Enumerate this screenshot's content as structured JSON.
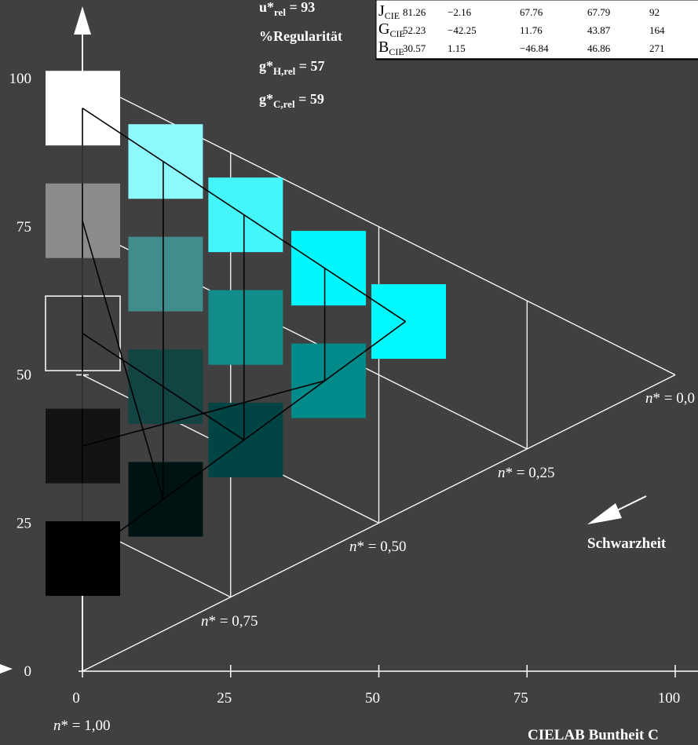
{
  "chart_data": {
    "type": "scatter",
    "xlabel": "CIELAB Buntheit C",
    "ylabel": "",
    "xlim": [
      0,
      100
    ],
    "ylim": [
      0,
      100
    ],
    "x_ticks": [
      "0",
      "25",
      "50",
      "75",
      "100"
    ],
    "y_ticks": [
      "0",
      "25",
      "50",
      "75",
      "100"
    ],
    "n_labels": [
      "n* = 1,00",
      "n* = 0,75",
      "n* = 0,50",
      "n* = 0,25",
      "n* = 0,0"
    ],
    "schwarzheit_label": "Schwarzheit",
    "gray_patches": [
      {
        "y": 95,
        "color": "#ffffff"
      },
      {
        "y": 76,
        "color": "#8c8c8c"
      },
      {
        "y": 57,
        "color": "#404040"
      },
      {
        "y": 38,
        "color": "#131313"
      },
      {
        "y": 19,
        "color": "#000000"
      }
    ],
    "color_patches": [
      {
        "x": 13.5,
        "y": 86,
        "color": "#8ef9fd"
      },
      {
        "x": 13.5,
        "y": 67,
        "color": "#418c8c"
      },
      {
        "x": 13.5,
        "y": 48,
        "color": "#124444"
      },
      {
        "x": 13.5,
        "y": 29,
        "color": "#001313"
      },
      {
        "x": 27,
        "y": 77,
        "color": "#44f5f9"
      },
      {
        "x": 27,
        "y": 58,
        "color": "#128d8c"
      },
      {
        "x": 27,
        "y": 39,
        "color": "#004444"
      },
      {
        "x": 41,
        "y": 68,
        "color": "#00f8fd"
      },
      {
        "x": 41,
        "y": 49,
        "color": "#008b8a"
      },
      {
        "x": 54.5,
        "y": 59,
        "color": "#00f9fd"
      }
    ]
  },
  "stats": {
    "u_label": "u*",
    "u_sub": "rel",
    "u_value": " = 93",
    "regularity": "%Regularität",
    "gh_label": "g*",
    "gh_sub": "H,rel",
    "gh_value": " = 57",
    "gc_label": "g*",
    "gc_sub": "C,rel",
    "gc_value": " = 59"
  },
  "table": {
    "rows": [
      {
        "letter": "J",
        "sub": "CIE",
        "cells": [
          "81.26",
          "−2.16",
          "67.76",
          "67.79",
          "92"
        ]
      },
      {
        "letter": "G",
        "sub": "CIE",
        "cells": [
          "52.23",
          "−42.25",
          "11.76",
          "43.87",
          "164"
        ]
      },
      {
        "letter": "B",
        "sub": "CIE",
        "cells": [
          "30.57",
          "1.15",
          "−46.84",
          "46.86",
          "271"
        ]
      }
    ]
  }
}
